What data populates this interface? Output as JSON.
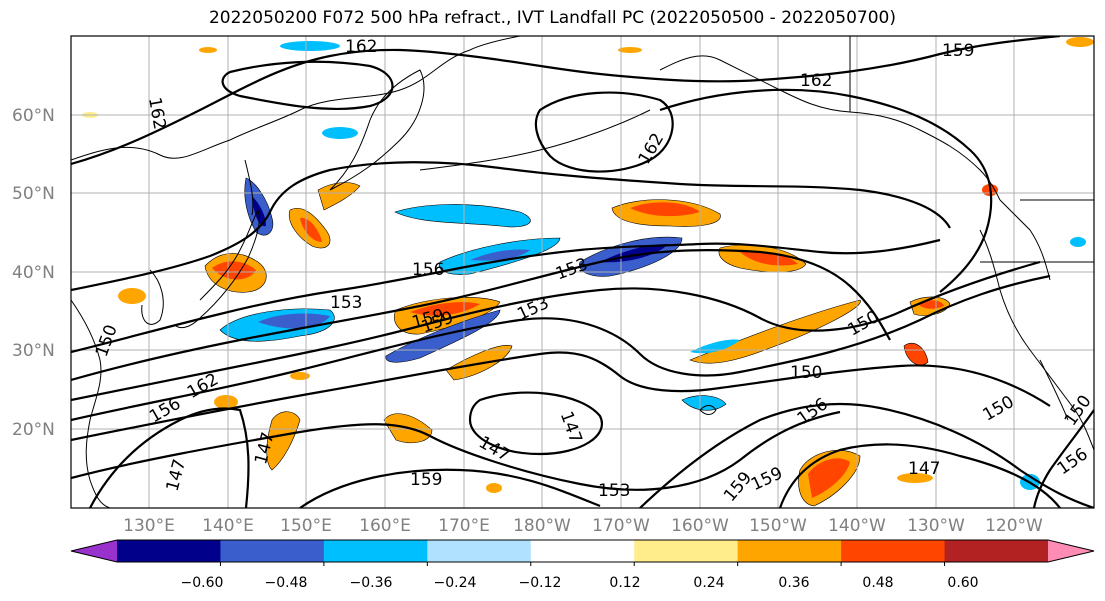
{
  "title": "2022050200 F072 500 hPa refract., IVT Landfall PC (2022050500 - 2022050700)",
  "lat_labels": [
    "60°N",
    "50°N",
    "40°N",
    "30°N",
    "20°N"
  ],
  "lon_labels": [
    "130°E",
    "140°E",
    "150°E",
    "160°E",
    "170°E",
    "180°W",
    "170°W",
    "160°W",
    "150°W",
    "140°W",
    "130°W",
    "120°W"
  ],
  "contour_labels": [
    "162",
    "159",
    "162",
    "162",
    "162",
    "159",
    "156",
    "153",
    "153",
    "153",
    "159",
    "150",
    "150",
    "162",
    "156",
    "147",
    "147",
    "147",
    "150",
    "156",
    "159",
    "159",
    "153",
    "147",
    "147",
    "150",
    "156",
    "159",
    "150"
  ],
  "colorbar": {
    "colors": [
      "#9932cc",
      "#00008b",
      "#3a5fcd",
      "#00bfff",
      "#b0e2ff",
      "#ffffff",
      "#ffec8b",
      "#ffa500",
      "#ff4500",
      "#b22222",
      "#ff8cb4"
    ],
    "tick_labels": [
      "−0.60",
      "−0.48",
      "−0.36",
      "−0.24",
      "−0.12",
      "0.12",
      "0.24",
      "0.36",
      "0.48",
      "0.60"
    ]
  },
  "colors": {
    "grid": "#b0b0b0",
    "contour": "#000000",
    "coast": "#000000"
  }
}
